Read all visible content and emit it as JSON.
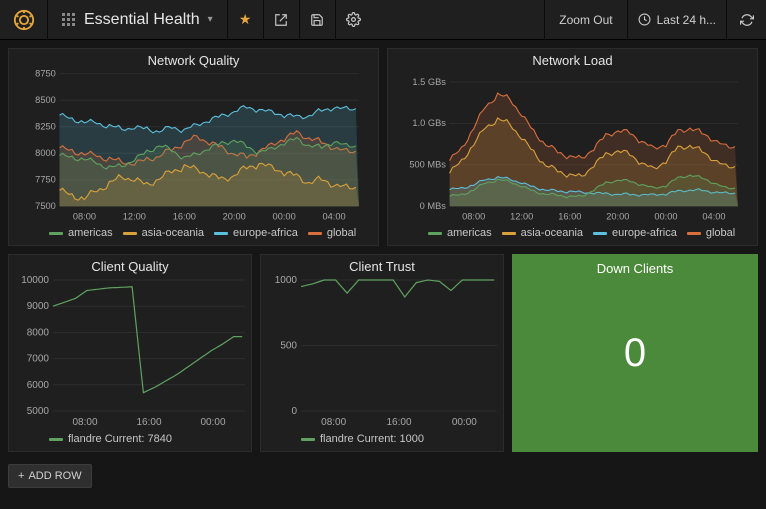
{
  "colors": {
    "bg": "#161616",
    "panel_bg": "#1f1f1f",
    "grid": "#333333",
    "text": "#d8d9da",
    "accent_orange": "#e5a73c"
  },
  "topbar": {
    "dashboard_title": "Essential Health",
    "zoom_out": "Zoom Out",
    "time_label": "Last 24 h...",
    "icons": {
      "star": "star-icon",
      "share": "share-icon",
      "save": "save-icon",
      "settings": "gear-icon",
      "clock": "clock-icon",
      "refresh": "refresh-icon"
    }
  },
  "legend_series": [
    {
      "name": "americas",
      "color": "#5fa25f"
    },
    {
      "name": "asia-oceania",
      "color": "#d9a13b"
    },
    {
      "name": "europe-africa",
      "color": "#5bc0de"
    },
    {
      "name": "global",
      "color": "#d86f3d"
    }
  ],
  "panels": {
    "network_quality": {
      "title": "Network Quality",
      "type": "line",
      "ylim": [
        7500,
        8750
      ],
      "yticks": [
        7500,
        7750,
        8000,
        8250,
        8500,
        8750
      ],
      "xticks": [
        "08:00",
        "12:00",
        "16:00",
        "20:00",
        "00:00",
        "04:00"
      ],
      "series": {
        "americas": [
          7980,
          7960,
          7950,
          7900,
          7870,
          7880,
          7940,
          8010,
          8080,
          8020,
          7960,
          7990,
          8050,
          8090,
          8130,
          8060,
          8010,
          8040,
          8100,
          8130,
          8080,
          8050,
          8110,
          8070
        ],
        "asia-oceania": [
          7650,
          7600,
          7580,
          7640,
          7720,
          7780,
          7750,
          7700,
          7770,
          7820,
          7880,
          7850,
          7800,
          7750,
          7800,
          7860,
          7900,
          7870,
          7820,
          7780,
          7730,
          7750,
          7700,
          7680
        ],
        "europe-africa": [
          8360,
          8320,
          8300,
          8280,
          8260,
          8230,
          8240,
          8230,
          8210,
          8240,
          8220,
          8270,
          8310,
          8350,
          8400,
          8430,
          8410,
          8390,
          8360,
          8340,
          8360,
          8400,
          8430,
          8420
        ],
        "global": [
          8050,
          8020,
          8000,
          7970,
          7950,
          7920,
          7900,
          7940,
          7980,
          8030,
          8100,
          8160,
          8100,
          8050,
          8000,
          7960,
          8020,
          8080,
          8140,
          8190,
          8150,
          8100,
          8050,
          8020
        ]
      }
    },
    "network_load": {
      "title": "Network Load",
      "type": "area",
      "ylabel_unit": "Bs",
      "ylim": [
        0,
        1.6
      ],
      "yticks": [
        0,
        0.5,
        1.0,
        1.5
      ],
      "ytick_labels": [
        "0 MBs",
        "500 MBs",
        "1.0 GBs",
        "1.5 GBs"
      ],
      "xticks": [
        "08:00",
        "12:00",
        "16:00",
        "20:00",
        "00:00",
        "04:00"
      ],
      "series": {
        "global": [
          0.55,
          0.7,
          0.95,
          1.2,
          1.35,
          1.3,
          1.1,
          0.9,
          0.75,
          0.65,
          0.6,
          0.58,
          0.7,
          0.85,
          0.92,
          0.88,
          0.78,
          0.7,
          0.75,
          0.9,
          0.95,
          0.88,
          0.8,
          0.72
        ],
        "asia-oceania": [
          0.4,
          0.55,
          0.75,
          0.95,
          1.05,
          1.0,
          0.82,
          0.65,
          0.5,
          0.42,
          0.38,
          0.36,
          0.5,
          0.62,
          0.68,
          0.62,
          0.52,
          0.45,
          0.55,
          0.7,
          0.74,
          0.66,
          0.56,
          0.48
        ],
        "americas": [
          0.12,
          0.14,
          0.2,
          0.28,
          0.32,
          0.3,
          0.24,
          0.18,
          0.15,
          0.13,
          0.12,
          0.12,
          0.2,
          0.28,
          0.32,
          0.3,
          0.26,
          0.22,
          0.25,
          0.34,
          0.38,
          0.34,
          0.28,
          0.22
        ],
        "europe-africa": [
          0.2,
          0.22,
          0.26,
          0.32,
          0.35,
          0.33,
          0.28,
          0.23,
          0.2,
          0.18,
          0.18,
          0.17,
          0.16,
          0.15,
          0.15,
          0.14,
          0.14,
          0.14,
          0.15,
          0.18,
          0.2,
          0.19,
          0.17,
          0.16
        ]
      }
    },
    "client_quality": {
      "title": "Client Quality",
      "type": "line",
      "ylim": [
        5000,
        10000
      ],
      "yticks": [
        5000,
        6000,
        7000,
        8000,
        9000,
        10000
      ],
      "xticks": [
        "08:00",
        "16:00",
        "00:00"
      ],
      "series_name": "flandre",
      "series_color": "#5fa25f",
      "values": [
        9000,
        9150,
        9300,
        9600,
        9650,
        9700,
        9720,
        9740,
        5700,
        5900,
        6150,
        6400,
        6700,
        7000,
        7300,
        7550,
        7840
      ],
      "current_label": "flandre  Current: 7840"
    },
    "client_trust": {
      "title": "Client Trust",
      "type": "line",
      "ylim": [
        0,
        1000
      ],
      "yticks": [
        0,
        500,
        1000
      ],
      "xticks": [
        "08:00",
        "16:00",
        "00:00"
      ],
      "series_name": "flandre",
      "series_color": "#5fa25f",
      "values": [
        950,
        970,
        1000,
        1000,
        900,
        1000,
        1000,
        1000,
        1000,
        870,
        980,
        1000,
        990,
        920,
        1000,
        1000,
        1000
      ],
      "current_label": "flandre  Current: 1000"
    },
    "down_clients": {
      "title": "Down Clients",
      "value": "0",
      "bg_color": "#4b8a3a",
      "text_color": "#ffffff"
    }
  },
  "add_row_label": "ADD ROW"
}
